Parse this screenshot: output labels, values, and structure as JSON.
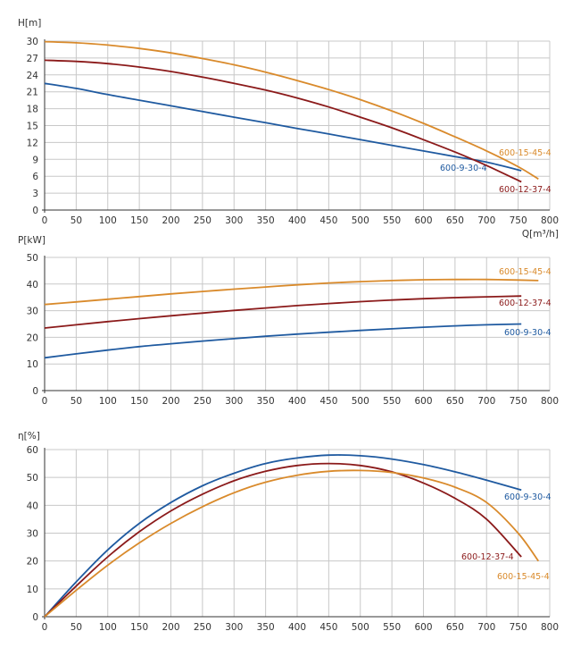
{
  "series_styles": [
    {
      "name": "600-9-30-4",
      "color": "#1f5aa0"
    },
    {
      "name": "600-12-37-4",
      "color": "#8b1a1a"
    },
    {
      "name": "600-15-45-4",
      "color": "#d98a2b"
    }
  ],
  "chart_data": [
    {
      "type": "line",
      "ylabel": "H[m]",
      "xlabel": "Q[m³/h]",
      "xlim": [
        0,
        800
      ],
      "ylim": [
        0,
        30
      ],
      "xticks": [
        0,
        50,
        100,
        150,
        200,
        250,
        300,
        350,
        400,
        450,
        500,
        550,
        600,
        650,
        700,
        750,
        800
      ],
      "yticks": [
        0,
        3,
        6,
        9,
        12,
        15,
        18,
        21,
        24,
        27,
        30
      ],
      "grid": true,
      "series": [
        {
          "name": "600-9-30-4",
          "x": [
            0,
            50,
            100,
            150,
            200,
            250,
            300,
            350,
            400,
            450,
            500,
            550,
            600,
            650,
            700,
            755
          ],
          "y": [
            22.5,
            21.6,
            20.5,
            19.5,
            18.5,
            17.5,
            16.5,
            15.5,
            14.5,
            13.5,
            12.5,
            11.5,
            10.5,
            9.5,
            8.5,
            7.0
          ]
        },
        {
          "name": "600-12-37-4",
          "x": [
            0,
            50,
            100,
            150,
            200,
            250,
            300,
            350,
            400,
            450,
            500,
            550,
            600,
            650,
            700,
            755
          ],
          "y": [
            26.6,
            26.4,
            26.0,
            25.4,
            24.6,
            23.6,
            22.5,
            21.3,
            19.9,
            18.3,
            16.5,
            14.6,
            12.5,
            10.3,
            7.9,
            5.0
          ]
        },
        {
          "name": "600-15-45-4",
          "x": [
            0,
            50,
            100,
            150,
            200,
            250,
            300,
            350,
            400,
            450,
            500,
            550,
            600,
            650,
            700,
            750,
            782
          ],
          "y": [
            29.9,
            29.7,
            29.3,
            28.7,
            27.9,
            26.9,
            25.8,
            24.5,
            23.0,
            21.4,
            19.6,
            17.6,
            15.4,
            13.0,
            10.5,
            7.7,
            5.5
          ]
        }
      ]
    },
    {
      "type": "line",
      "ylabel": "P[kW]",
      "xlim": [
        0,
        800
      ],
      "ylim": [
        0,
        50
      ],
      "xticks": [
        0,
        50,
        100,
        150,
        200,
        250,
        300,
        350,
        400,
        450,
        500,
        550,
        600,
        650,
        700,
        750,
        800
      ],
      "yticks": [
        0,
        10,
        20,
        30,
        40,
        50
      ],
      "grid": true,
      "series": [
        {
          "name": "600-9-30-4",
          "x": [
            0,
            50,
            100,
            150,
            200,
            250,
            300,
            350,
            400,
            450,
            500,
            550,
            600,
            650,
            700,
            755
          ],
          "y": [
            12.3,
            13.8,
            15.2,
            16.5,
            17.6,
            18.6,
            19.5,
            20.4,
            21.2,
            21.9,
            22.6,
            23.2,
            23.8,
            24.3,
            24.7,
            25.0
          ]
        },
        {
          "name": "600-12-37-4",
          "x": [
            0,
            50,
            100,
            150,
            200,
            250,
            300,
            350,
            400,
            450,
            500,
            550,
            600,
            650,
            700,
            755
          ],
          "y": [
            23.5,
            24.7,
            25.9,
            27.0,
            28.1,
            29.1,
            30.1,
            31.0,
            31.9,
            32.7,
            33.4,
            34.0,
            34.5,
            34.9,
            35.2,
            35.5
          ]
        },
        {
          "name": "600-15-45-4",
          "x": [
            0,
            50,
            100,
            150,
            200,
            250,
            300,
            350,
            400,
            450,
            500,
            550,
            600,
            650,
            700,
            750,
            782
          ],
          "y": [
            32.3,
            33.3,
            34.3,
            35.3,
            36.3,
            37.2,
            38.1,
            38.9,
            39.7,
            40.4,
            40.9,
            41.3,
            41.6,
            41.7,
            41.7,
            41.5,
            41.3
          ]
        }
      ]
    },
    {
      "type": "line",
      "ylabel": "η[%]",
      "xlim": [
        0,
        800
      ],
      "ylim": [
        0,
        60
      ],
      "xticks": [
        0,
        50,
        100,
        150,
        200,
        250,
        300,
        350,
        400,
        450,
        500,
        550,
        600,
        650,
        700,
        750,
        800
      ],
      "yticks": [
        0,
        10,
        20,
        30,
        40,
        50,
        60
      ],
      "grid": true,
      "series": [
        {
          "name": "600-9-30-4",
          "x": [
            0,
            50,
            100,
            150,
            200,
            250,
            300,
            350,
            400,
            450,
            500,
            550,
            600,
            650,
            700,
            755
          ],
          "y": [
            0,
            12.5,
            24,
            33.5,
            41,
            47,
            51.5,
            55,
            57,
            58,
            57.8,
            56.6,
            54.6,
            52,
            49,
            45.5
          ]
        },
        {
          "name": "600-12-37-4",
          "x": [
            0,
            50,
            100,
            150,
            200,
            250,
            300,
            350,
            400,
            450,
            500,
            550,
            600,
            650,
            700,
            755
          ],
          "y": [
            0,
            11,
            21.5,
            30.5,
            38,
            44,
            48.8,
            52.2,
            54.3,
            55,
            54.3,
            52,
            48,
            42.5,
            35,
            21.5
          ]
        },
        {
          "name": "600-15-45-4",
          "x": [
            0,
            50,
            100,
            150,
            200,
            250,
            300,
            350,
            400,
            450,
            500,
            550,
            600,
            650,
            700,
            750,
            782
          ],
          "y": [
            0,
            9.5,
            18.5,
            26.5,
            33.5,
            39.5,
            44.5,
            48.3,
            50.8,
            52.2,
            52.5,
            51.8,
            49.8,
            46.5,
            41,
            30,
            20
          ]
        }
      ]
    }
  ]
}
